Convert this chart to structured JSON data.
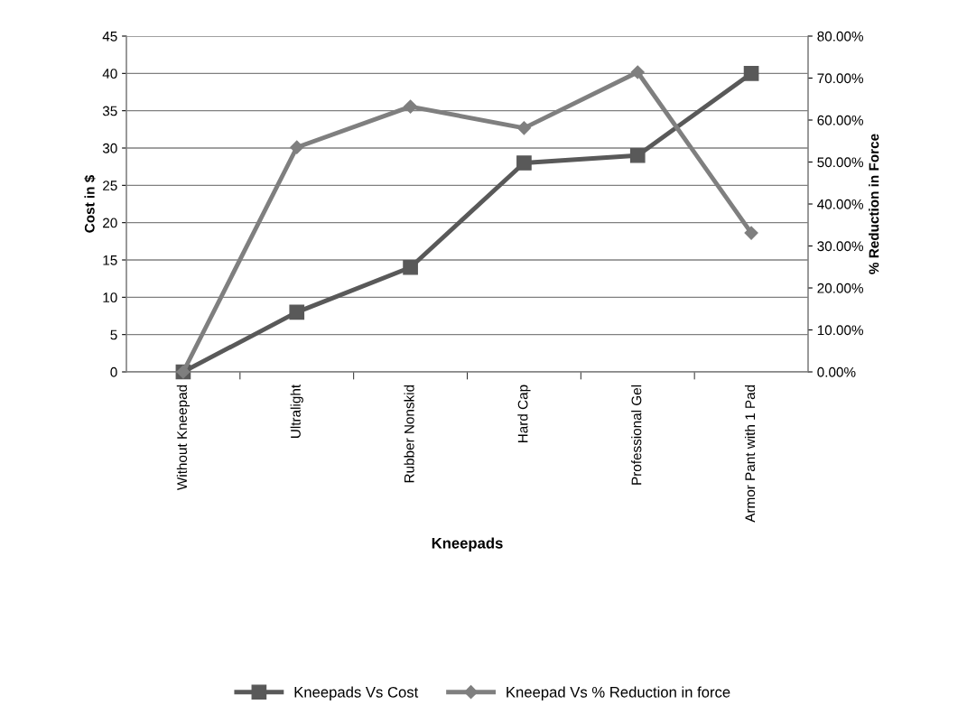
{
  "chart_data": {
    "type": "line",
    "xlabel": "Kneepads",
    "ylabel": "Cost in $",
    "y2label": "% Reduction in Force",
    "categories": [
      "Without Kneepad",
      "Ultralight",
      "Rubber Nonskid",
      "Hard Cap",
      "Professional Gel",
      "Armor Pant with 1 Pad"
    ],
    "series": [
      {
        "name": "Kneepads Vs Cost",
        "color": "#595959",
        "marker": "square",
        "values": [
          0,
          8,
          14,
          28,
          29,
          40
        ]
      },
      {
        "name": "Kneepad Vs % Reduction in force",
        "color": "#7f7f7f",
        "marker": "diamond",
        "axis": "y2",
        "values": [
          0,
          0.535,
          0.632,
          0.581,
          0.714,
          0.331
        ]
      }
    ],
    "ylim": [
      0,
      45
    ],
    "yticks": [
      0,
      5,
      10,
      15,
      20,
      25,
      30,
      35,
      40,
      45
    ],
    "y2lim": [
      0,
      0.8
    ],
    "y2ticks": [
      {
        "value": 0,
        "label": "0.00%"
      },
      {
        "value": 0.1,
        "label": "10.00%"
      },
      {
        "value": 0.2,
        "label": "20.00%"
      },
      {
        "value": 0.3,
        "label": "30.00%"
      },
      {
        "value": 0.4,
        "label": "40.00%"
      },
      {
        "value": 0.5,
        "label": "50.00%"
      },
      {
        "value": 0.6,
        "label": "60.00%"
      },
      {
        "value": 0.7,
        "label": "70.00%"
      },
      {
        "value": 0.8,
        "label": "80.00%"
      }
    ],
    "grid": "y",
    "legend": "bottom",
    "line_style": "solid"
  }
}
